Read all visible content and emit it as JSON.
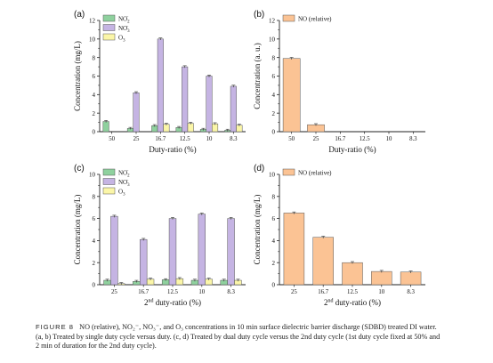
{
  "figure": {
    "caption_label": "FIGURE 8",
    "caption_line1": "NO (relative), NO₂⁻, NO₃⁻, and O₃ concentrations in 10 min surface dielectric barrier discharge (SDBD) treated DI water.",
    "caption_line2": "(a, b) Treated by single duty cycle versus duty. (c, d) Treated by dual duty cycle versus the 2nd duty cycle (1st duty cycle fixed at 50% and",
    "caption_line3": "2 min of duration for the 2nd duty cycle)."
  },
  "colors": {
    "no2": "#8fd19e",
    "no3": "#c5b4e3",
    "o3": "#fbf6a8",
    "no": "#fbc394",
    "axis": "#222222"
  },
  "chart_data": [
    {
      "panel": "(a)",
      "type": "bar",
      "categories": [
        "50",
        "25",
        "16.7",
        "12.5",
        "10",
        "8.3"
      ],
      "xlabel": "Duty-ratio (%)",
      "ylabel": "Concentration (mg/L)",
      "ylim": [
        0,
        12
      ],
      "yticks": [
        0,
        2,
        4,
        6,
        8,
        10,
        12
      ],
      "legend_position": "top-left",
      "series": [
        {
          "name": "NO2-",
          "values": [
            1.1,
            0.35,
            0.65,
            0.45,
            0.25,
            0.15
          ]
        },
        {
          "name": "NO3-",
          "values": [
            0.0,
            4.2,
            10.0,
            7.0,
            6.0,
            4.9
          ]
        },
        {
          "name": "O3",
          "values": [
            0.0,
            0.0,
            0.8,
            0.9,
            0.85,
            0.7
          ]
        }
      ]
    },
    {
      "panel": "(b)",
      "type": "bar",
      "categories": [
        "50",
        "25",
        "16.7",
        "12.5",
        "10",
        "8.3"
      ],
      "xlabel": "Duty-ratio (%)",
      "ylabel": "Concentration (a. u.)",
      "ylim": [
        0,
        12
      ],
      "yticks": [
        0,
        2,
        4,
        6,
        8,
        10,
        12
      ],
      "legend_position": "top-left",
      "series": [
        {
          "name": "NO (relative)",
          "values": [
            7.9,
            0.75,
            0.0,
            0.0,
            0.0,
            0.0
          ]
        }
      ]
    },
    {
      "panel": "(c)",
      "type": "bar",
      "categories": [
        "25",
        "16.7",
        "12.5",
        "10",
        "8.3"
      ],
      "xlabel": "2nd duty-ratio (%)",
      "ylabel": "Concentration (mg/L)",
      "ylim": [
        0,
        10
      ],
      "yticks": [
        0,
        2,
        4,
        6,
        8,
        10
      ],
      "legend_position": "top-left",
      "series": [
        {
          "name": "NO2-",
          "values": [
            0.4,
            0.3,
            0.45,
            0.4,
            0.4
          ]
        },
        {
          "name": "NO3-",
          "values": [
            6.2,
            4.1,
            6.0,
            6.4,
            6.0
          ]
        },
        {
          "name": "O3",
          "values": [
            0.1,
            0.5,
            0.55,
            0.5,
            0.4
          ]
        }
      ]
    },
    {
      "panel": "(d)",
      "type": "bar",
      "categories": [
        "25",
        "16.7",
        "12.5",
        "10",
        "8.3"
      ],
      "xlabel": "2nd duty-ratio (%)",
      "ylabel": "Concentration (mg/L)",
      "ylim": [
        0,
        10
      ],
      "yticks": [
        0,
        2,
        4,
        6,
        8,
        10
      ],
      "legend_position": "top-left",
      "series": [
        {
          "name": "NO (relative)",
          "values": [
            6.5,
            4.3,
            2.0,
            1.2,
            1.15
          ]
        }
      ]
    }
  ]
}
